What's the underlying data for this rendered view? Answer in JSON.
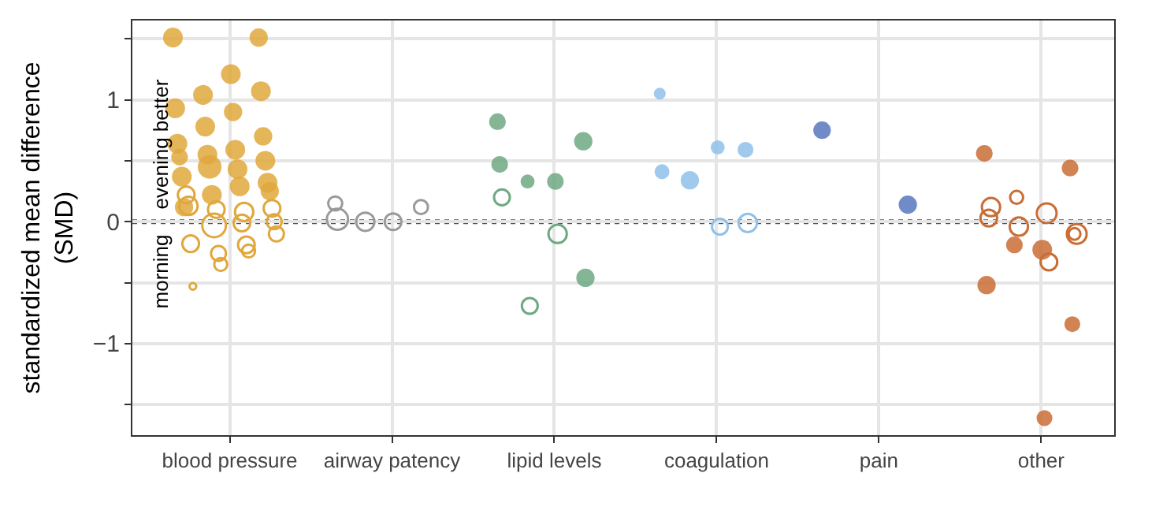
{
  "chart_data": {
    "type": "bubble",
    "ylabel": "standardized mean difference\n(SMD)",
    "categories": [
      "blood pressure",
      "airway patency",
      "lipid levels",
      "coagulation",
      "pain",
      "other"
    ],
    "ylim": [
      -1.75,
      1.65
    ],
    "yticks": [
      {
        "value": -1.5,
        "label": null
      },
      -1,
      {
        "value": -0.5,
        "label": null
      },
      0,
      {
        "value": 0.5,
        "label": null
      },
      1,
      {
        "value": 1.5,
        "label": null
      }
    ],
    "grid": true,
    "ref_lines": [
      {
        "axis": "y",
        "value": 0,
        "label": null,
        "color": "#555555",
        "line_style": "dotted"
      }
    ],
    "annotations": [
      "morning",
      "evening better"
    ],
    "series": [
      {
        "color": "#e0a83c",
        "marker": "circle",
        "x": [
          "blood pressure",
          "blood pressure",
          "blood pressure",
          "blood pressure",
          "blood pressure",
          "blood pressure",
          "blood pressure",
          "blood pressure",
          "blood pressure",
          "blood pressure",
          "blood pressure",
          "blood pressure",
          "blood pressure",
          "blood pressure",
          "blood pressure",
          "blood pressure",
          "blood pressure",
          "blood pressure",
          "blood pressure",
          "blood pressure",
          "blood pressure",
          "blood pressure"
        ],
        "values": [
          1.51,
          1.51,
          1.21,
          1.04,
          0.93,
          1.07,
          0.9,
          0.78,
          0.64,
          0.7,
          0.59,
          0.55,
          0.53,
          0.5,
          0.43,
          0.45,
          0.37,
          0.32,
          0.29,
          0.22,
          0.12,
          0.25
        ],
        "sizes": [
          0.7,
          0.6,
          0.7,
          0.7,
          0.7,
          0.7,
          0.6,
          0.7,
          0.7,
          0.6,
          0.7,
          0.7,
          0.5,
          0.7,
          0.7,
          1,
          0.7,
          0.7,
          0.7,
          0.7,
          0.6,
          0.6
        ]
      },
      {
        "color": "#e0a83c",
        "marker": "circle-open",
        "x": [
          "blood pressure",
          "blood pressure",
          "blood pressure",
          "blood pressure",
          "blood pressure",
          "blood pressure",
          "blood pressure",
          "blood pressure",
          "blood pressure",
          "blood pressure",
          "blood pressure",
          "blood pressure",
          "blood pressure",
          "blood pressure",
          "blood pressure"
        ],
        "values": [
          -0.01,
          -0.03,
          0.22,
          0.11,
          0.08,
          0.1,
          0.13,
          0.0,
          -0.19,
          -0.26,
          -0.18,
          -0.1,
          -0.24,
          -0.35,
          -0.53
        ],
        "sizes": [
          0.5,
          1,
          0.5,
          0.5,
          0.6,
          0.5,
          0.6,
          0.4,
          0.5,
          0.4,
          0.5,
          0.4,
          0.3,
          0.3,
          0.08
        ]
      },
      {
        "color": "#9a9a9a",
        "marker": "circle-open",
        "x": [
          "airway patency",
          "airway patency",
          "airway patency",
          "airway patency",
          "airway patency"
        ],
        "values": [
          0.15,
          0.12,
          0.0,
          0.0,
          0.02
        ],
        "sizes": [
          0.35,
          0.35,
          0.5,
          0.6,
          0.8
        ]
      },
      {
        "color": "#6fa883",
        "marker": "circle",
        "x": [
          "lipid levels",
          "lipid levels",
          "lipid levels",
          "lipid levels",
          "lipid levels",
          "lipid levels"
        ],
        "values": [
          0.82,
          0.66,
          0.33,
          0.33,
          0.47,
          -0.46
        ],
        "sizes": [
          0.5,
          0.6,
          0.5,
          0.35,
          0.5,
          0.6
        ]
      },
      {
        "color": "#6fa883",
        "marker": "circle-open",
        "x": [
          "lipid levels",
          "lipid levels",
          "lipid levels"
        ],
        "values": [
          -0.1,
          -0.69,
          0.2
        ],
        "sizes": [
          0.6,
          0.45,
          0.45
        ]
      },
      {
        "color": "#8fc1ea",
        "marker": "circle",
        "x": [
          "coagulation",
          "coagulation",
          "coagulation",
          "coagulation",
          "coagulation"
        ],
        "values": [
          1.05,
          0.59,
          0.61,
          0.34,
          0.41
        ],
        "sizes": [
          0.25,
          0.45,
          0.35,
          0.6,
          0.4
        ]
      },
      {
        "color": "#8fc1ea",
        "marker": "circle-open",
        "x": [
          "coagulation",
          "coagulation"
        ],
        "values": [
          -0.01,
          -0.04
        ],
        "sizes": [
          0.6,
          0.45
        ]
      },
      {
        "color": "#5777bd",
        "marker": "circle",
        "x": [
          "pain",
          "pain"
        ],
        "values": [
          0.75,
          0.14
        ],
        "sizes": [
          0.55,
          0.6
        ]
      },
      {
        "color": "#c96d36",
        "marker": "circle",
        "x": [
          "other",
          "other",
          "other",
          "other",
          "other",
          "other",
          "other"
        ],
        "values": [
          0.56,
          0.44,
          -0.23,
          -0.19,
          -0.52,
          -0.84,
          -1.61
        ],
        "sizes": [
          0.5,
          0.5,
          0.7,
          0.5,
          0.6,
          0.45,
          0.45
        ]
      },
      {
        "color": "#c96d36",
        "marker": "circle-open",
        "x": [
          "other",
          "other",
          "other",
          "other",
          "other",
          "other",
          "other",
          "other"
        ],
        "values": [
          0.2,
          0.03,
          -0.1,
          0.07,
          -0.04,
          0.12,
          -0.1,
          -0.33
        ],
        "sizes": [
          0.3,
          0.5,
          0.25,
          0.7,
          0.6,
          0.6,
          0.7,
          0.5
        ]
      }
    ]
  }
}
